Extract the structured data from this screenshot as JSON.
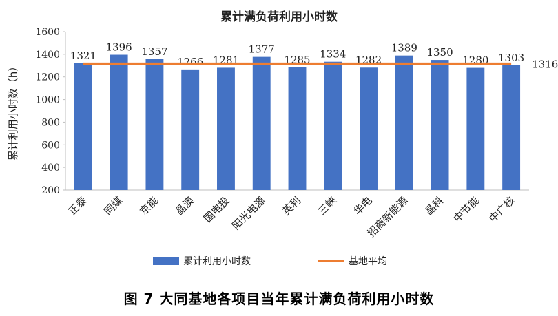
{
  "caption": "图 7   大同基地各项目当年累计满负荷利用小时数",
  "chart_data": {
    "type": "bar",
    "title": "累计满负荷利用小时数",
    "ylabel": "累计利用小时数（h）",
    "xlabel": "",
    "ylim": [
      200,
      1600
    ],
    "yticks": [
      200,
      400,
      600,
      800,
      1000,
      1200,
      1400,
      1600
    ],
    "grid": false,
    "legend_position": "bottom",
    "categories": [
      "正泰",
      "同煤",
      "京能",
      "晶澳",
      "国电投",
      "阳光电源",
      "英利",
      "三峡",
      "华电",
      "招商新能源",
      "晶科",
      "中节能",
      "中广核"
    ],
    "series": [
      {
        "name": "累计利用小时数",
        "type": "bar",
        "color": "#4472C4",
        "values": [
          1321,
          1396,
          1357,
          1266,
          1281,
          1377,
          1285,
          1334,
          1282,
          1389,
          1350,
          1280,
          1303
        ]
      },
      {
        "name": "基地平均",
        "type": "line",
        "color": "#ED7D31",
        "value": 1316
      }
    ]
  }
}
